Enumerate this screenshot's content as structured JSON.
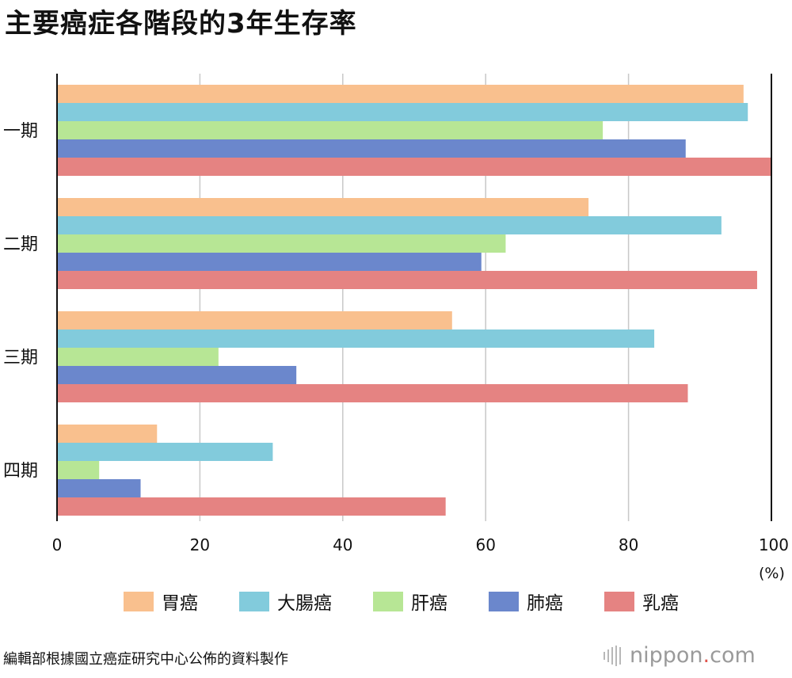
{
  "title": "主要癌症各階段的3年生存率",
  "unit_label": "(%)",
  "source_note": "編輯部根據國立癌症研究中心公佈的資料製作",
  "brand": {
    "name": "nippon",
    "dot": ".",
    "tld": "com"
  },
  "chart_data": {
    "type": "bar",
    "orientation": "horizontal",
    "categories": [
      "一期",
      "二期",
      "三期",
      "四期"
    ],
    "xlim": [
      0,
      100
    ],
    "xticks": [
      0,
      20,
      40,
      60,
      80,
      100
    ],
    "grid": true,
    "legend_position": "bottom",
    "series": [
      {
        "name": "胃癌",
        "color": "#f9c08e",
        "values": [
          96.1,
          74.4,
          55.3,
          14.0
        ]
      },
      {
        "name": "大腸癌",
        "color": "#82cbdc",
        "values": [
          96.7,
          93.0,
          83.6,
          30.2
        ]
      },
      {
        "name": "肝癌",
        "color": "#b7e695",
        "values": [
          76.4,
          62.8,
          22.6,
          5.9
        ]
      },
      {
        "name": "肺癌",
        "color": "#6b87cc",
        "values": [
          88.0,
          59.4,
          33.5,
          11.7
        ]
      },
      {
        "name": "乳癌",
        "color": "#e58382",
        "values": [
          100.0,
          98.0,
          88.3,
          54.4
        ]
      }
    ]
  }
}
